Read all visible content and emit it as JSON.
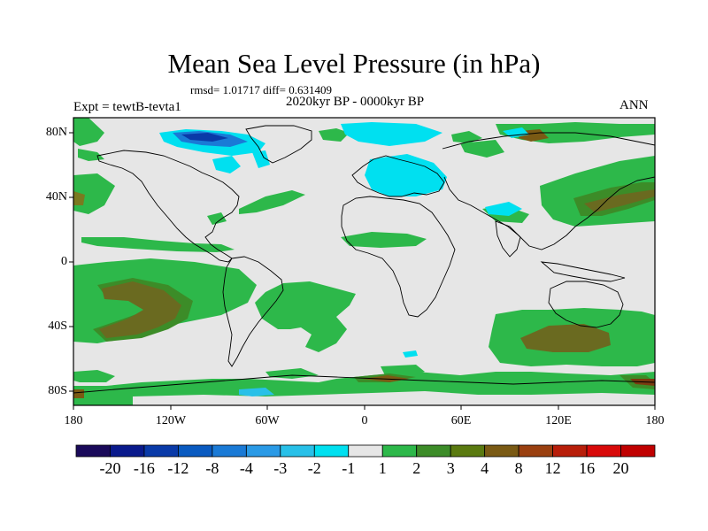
{
  "title": "Mean Sea Level Pressure (in hPa)",
  "stats_line": "rmsd= 1.01717 diff= 0.631409",
  "period_line": "2020kyr BP - 0000kyr BP",
  "experiment_label": "Expt = tewtB-tevta1",
  "season_label": "ANN",
  "lat_labels": [
    "80N",
    "40N",
    "0",
    "40S",
    "80S"
  ],
  "lon_labels": [
    "180",
    "120W",
    "60W",
    "0",
    "60E",
    "120E",
    "180"
  ],
  "colorbar": {
    "tick_labels": [
      "-20",
      "-16",
      "-12",
      "-8",
      "-4",
      "-3",
      "-2",
      "-1",
      "1",
      "2",
      "3",
      "4",
      "8",
      "12",
      "16",
      "20"
    ],
    "colors": [
      "#1a0a5a",
      "#0a1a8c",
      "#0a3aa8",
      "#0a5ac0",
      "#1a7ad6",
      "#2a9ae6",
      "#28c0e8",
      "#00e0f0",
      "#e6e6e6",
      "#2db84a",
      "#3c8c28",
      "#5a7a10",
      "#7a5a14",
      "#9a4010",
      "#b81e0a",
      "#d80a0a",
      "#c00000"
    ]
  },
  "colors": {
    "background": "#e6e6e6",
    "positive_weak": "#2db84a",
    "positive_mid": "#3c8c28",
    "positive_strong": "#5a6a14",
    "negative_weak": "#00e0f0",
    "negative_mid": "#28c0e8",
    "negative_strong": "#0a3aa8",
    "coast": "#000000"
  }
}
